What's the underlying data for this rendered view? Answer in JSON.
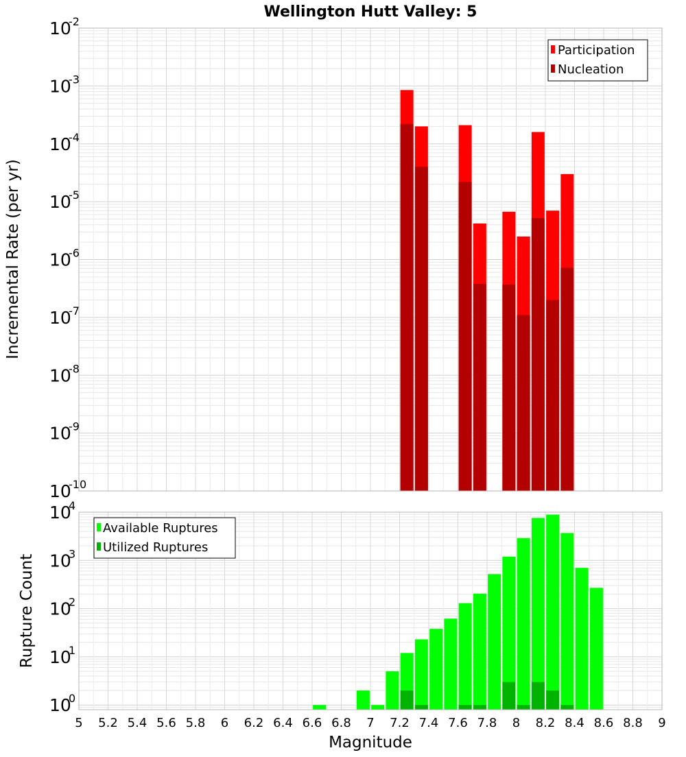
{
  "chart_data": [
    {
      "type": "bar",
      "title": "Wellington Hutt Valley: 5",
      "xlabel": "Magnitude",
      "ylabel": "Incremental Rate (per yr)",
      "y_scale": "log",
      "xlim": [
        5,
        9
      ],
      "ylim": [
        1e-10,
        0.01
      ],
      "grid": true,
      "legend_position": "top-right",
      "y_ticks": [
        {
          "base": "10",
          "exp": "-10",
          "value": 1e-10
        },
        {
          "base": "10",
          "exp": "-9",
          "value": 1e-09
        },
        {
          "base": "10",
          "exp": "-8",
          "value": 1e-08
        },
        {
          "base": "10",
          "exp": "-7",
          "value": 1e-07
        },
        {
          "base": "10",
          "exp": "-6",
          "value": 1e-06
        },
        {
          "base": "10",
          "exp": "-5",
          "value": 1e-05
        },
        {
          "base": "10",
          "exp": "-4",
          "value": 0.0001
        },
        {
          "base": "10",
          "exp": "-3",
          "value": 0.001
        },
        {
          "base": "10",
          "exp": "-2",
          "value": 0.01
        }
      ],
      "series": [
        {
          "name": "Participation",
          "color": "#ff0000",
          "x": [
            7.25,
            7.35,
            7.65,
            7.75,
            7.95,
            8.05,
            8.15,
            8.25,
            8.35
          ],
          "values": [
            0.00085,
            0.0002,
            0.00021,
            4.2e-06,
            6.7e-06,
            2.5e-06,
            0.00016,
            7e-06,
            3e-05
          ]
        },
        {
          "name": "Nucleation",
          "color": "#b30000",
          "x": [
            7.25,
            7.35,
            7.65,
            7.75,
            7.95,
            8.05,
            8.15,
            8.25,
            8.35
          ],
          "values": [
            0.00022,
            4e-05,
            2.2e-05,
            3.8e-07,
            3.7e-07,
            1.1e-07,
            5.2e-06,
            2e-07,
            7.2e-07
          ]
        }
      ]
    },
    {
      "type": "bar",
      "xlabel": "Magnitude",
      "ylabel": "Rupture Count",
      "y_scale": "log",
      "xlim": [
        5,
        9
      ],
      "ylim": [
        0.8,
        10000
      ],
      "grid": true,
      "legend_position": "top-left",
      "x_ticks": [
        "5",
        "5.2",
        "5.4",
        "5.6",
        "5.8",
        "6",
        "6.2",
        "6.4",
        "6.6",
        "6.8",
        "7",
        "7.2",
        "7.4",
        "7.6",
        "7.8",
        "8",
        "8.2",
        "8.4",
        "8.6",
        "8.8",
        "9"
      ],
      "y_ticks": [
        {
          "base": "10",
          "exp": "0",
          "value": 1
        },
        {
          "base": "10",
          "exp": "1",
          "value": 10
        },
        {
          "base": "10",
          "exp": "2",
          "value": 100
        },
        {
          "base": "10",
          "exp": "3",
          "value": 1000
        },
        {
          "base": "10",
          "exp": "4",
          "value": 10000
        }
      ],
      "series": [
        {
          "name": "Available Ruptures",
          "color": "#00ff00",
          "x": [
            6.65,
            6.95,
            7.05,
            7.15,
            7.25,
            7.35,
            7.45,
            7.55,
            7.65,
            7.75,
            7.85,
            7.95,
            8.05,
            8.15,
            8.25,
            8.35,
            8.45,
            8.55
          ],
          "values": [
            1,
            2,
            1,
            5,
            12,
            23,
            38,
            62,
            130,
            205,
            520,
            1200,
            2900,
            7600,
            8900,
            3700,
            700,
            270
          ]
        },
        {
          "name": "Utilized Ruptures",
          "color": "#00b300",
          "x": [
            7.25,
            7.35,
            7.65,
            7.75,
            7.95,
            8.05,
            8.15,
            8.25,
            8.35
          ],
          "values": [
            2,
            1,
            1,
            1,
            3,
            1,
            3,
            2,
            1
          ]
        }
      ]
    }
  ]
}
